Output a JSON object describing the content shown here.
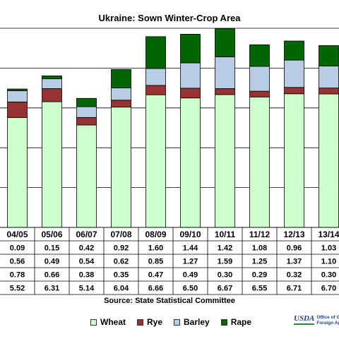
{
  "title": "Ukraine:  Sown Winter-Crop Area",
  "source": "Source:  State Statistical Committee",
  "logo": {
    "usda": "USDA",
    "line1": "Office of G",
    "line2": "Foreign Ag"
  },
  "colors": {
    "wheat": "#ccffcc",
    "rye": "#993333",
    "barley": "#b8cce4",
    "rape": "#006600"
  },
  "chart_data": {
    "type": "bar",
    "stacked": true,
    "title": "Ukraine:  Sown Winter-Crop Area",
    "categories": [
      "04/05",
      "05/06",
      "06/07",
      "07/08",
      "08/09",
      "09/10",
      "10/11",
      "11/12",
      "12/13",
      "13/14"
    ],
    "series": [
      {
        "name": "Wheat",
        "key": "wheat",
        "values": [
          5.52,
          6.31,
          5.14,
          6.04,
          6.66,
          6.5,
          6.67,
          6.55,
          6.71,
          6.7
        ]
      },
      {
        "name": "Rye",
        "key": "rye",
        "values": [
          0.78,
          0.66,
          0.38,
          0.35,
          0.47,
          0.49,
          0.3,
          0.29,
          0.32,
          0.3
        ]
      },
      {
        "name": "Barley",
        "key": "barley",
        "values": [
          0.56,
          0.49,
          0.54,
          0.62,
          0.85,
          1.27,
          1.59,
          1.25,
          1.37,
          1.1
        ]
      },
      {
        "name": "Rape",
        "key": "rape",
        "values": [
          0.09,
          0.15,
          0.42,
          0.92,
          1.6,
          1.44,
          1.42,
          1.08,
          0.96,
          1.03
        ]
      }
    ],
    "table_rows_order": [
      "rape",
      "barley",
      "rye",
      "wheat"
    ],
    "legend_order": [
      "wheat",
      "rye",
      "barley",
      "rape"
    ],
    "legend_position": "bottom",
    "ylim": [
      0,
      10
    ],
    "grid": true
  }
}
